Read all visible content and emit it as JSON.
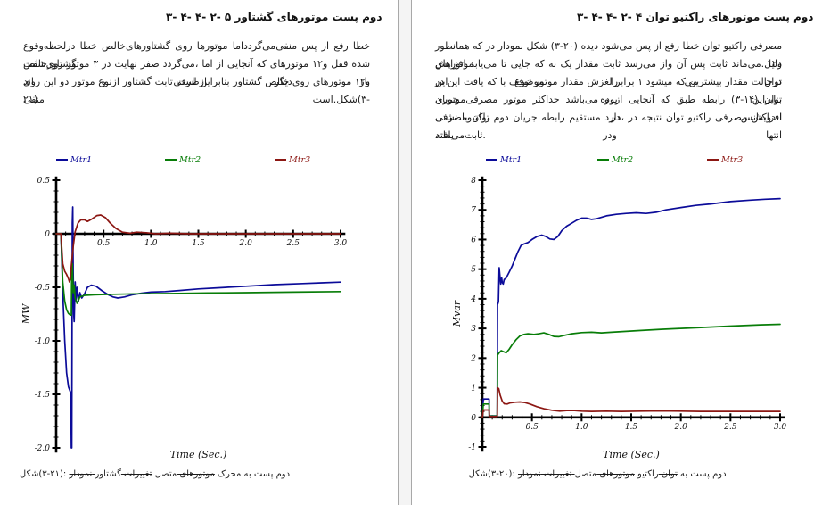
{
  "pages": {
    "left": {
      "heading": "۳- ۴- ۴- ۲- ۵ گشتاور موتورهای پست دوم",
      "paragraph_lines": [
        "درلحظه‌وقوع خطا گشتاورهای‌خالص روی موتورها منفی‌می‌گردداما پس از رفع خطا گشتاورخالص",
        "روی‌شفت موتور ۳ در نهایت صفر می‌گردد، اما از آنجایی که موتورهای ۱و۲ قفل شده اند و ازطرفی دیگر بار",
        "روی این دو موتور ازنوع گشتاور ثابت است بنابراین گشتاور خالص روی موتورهای ۱و۲ منفی است.شکل(۳-",
        "۲۱)"
      ],
      "caption_parts": [
        {
          "text": "شکل(۳-۲۱): ",
          "strike": false
        },
        {
          "text": "نمودار تغییرات",
          "strike": true
        },
        {
          "text": " گشتاور محرک ",
          "strike": false
        },
        {
          "text": "موتورهای",
          "strike": true
        },
        {
          "text": " متصل به پست دوم",
          "strike": false
        }
      ]
    },
    "right": {
      "heading": "۳- ۴- ۴- ۲- ۴ توان راکتیو موتورهای پست دوم",
      "paragraph_lines": [
        "همانطور که در نمودار شکل (۳-۲۰) دیده می‌شود پس از رفع خطا توان راکتیو مصرفی موتورهای ۱و۲",
        "افزایش می‌یابد تا جایی که به یک مقدار ثابت می‌رسد واز آن پس ثابت می‌ماند.دلیل این موضوع را می توان",
        "در این یافت که با توقف موتور مقدار لغزش برابر ۱ میشود که بیشترین مقدار درحالت موتوری بوده بنابراین",
        "جریان مصرفی موتور حداکثر می‌باشد و از آنجایی که طبق رابطه (۳-۱۴) توان راکتیومصرفی در اندوکتانس",
        "نشتی با توان دوم جریان رابطه مستقیم دارد، در نتیجه توان راکتیو مصرفی افزایش یافته ودر انتها",
        "ثابت‌می‌ماند."
      ],
      "caption_parts": [
        {
          "text": "شکل(۳-۲۰): ",
          "strike": false
        },
        {
          "text": "نمودار تغییرات توان",
          "strike": true
        },
        {
          "text": " راکتیو ",
          "strike": false
        },
        {
          "text": "موتورهای",
          "strike": true
        },
        {
          "text": " متصل به پست دوم",
          "strike": false
        }
      ]
    }
  },
  "chart_data": [
    {
      "id": "torque-chart",
      "type": "line",
      "title": "",
      "xlabel": "Time (Sec.)",
      "ylabel": "MW",
      "xlim": [
        0,
        3
      ],
      "ylim": [
        -2,
        0.5
      ],
      "x_major": 0.5,
      "x_minor": 0.1,
      "y_major": 0.5,
      "y_minor": 0.1,
      "grid": false,
      "legend_position": "top",
      "x_ticks": [
        [
          0.5,
          "0.5"
        ],
        [
          1,
          "1.0"
        ],
        [
          1.5,
          "1.5"
        ],
        [
          2,
          "2.0"
        ],
        [
          2.5,
          "2.5"
        ],
        [
          3,
          "3.0"
        ]
      ],
      "y_ticks": [
        [
          0.5,
          "0.5"
        ],
        [
          0,
          "0"
        ],
        [
          -0.5,
          "-0.5"
        ],
        [
          -1,
          "-1.0"
        ],
        [
          -1.5,
          "-1.5"
        ],
        [
          -2,
          "-2.0"
        ]
      ],
      "series": [
        {
          "name": "Mtr1",
          "color": "#0b0b99",
          "points": [
            [
              0,
              0
            ],
            [
              0.05,
              0
            ],
            [
              0.07,
              -0.55
            ],
            [
              0.09,
              -1.0
            ],
            [
              0.11,
              -1.3
            ],
            [
              0.13,
              -1.43
            ],
            [
              0.15,
              -1.48
            ],
            [
              0.155,
              -1.5
            ],
            [
              0.16,
              -2.0
            ],
            [
              0.165,
              -2.0
            ],
            [
              0.17,
              0.1
            ],
            [
              0.175,
              0.25
            ],
            [
              0.18,
              -0.35
            ],
            [
              0.185,
              -0.75
            ],
            [
              0.19,
              -0.82
            ],
            [
              0.2,
              -0.45
            ],
            [
              0.21,
              -0.62
            ],
            [
              0.22,
              -0.5
            ],
            [
              0.235,
              -0.63
            ],
            [
              0.25,
              -0.55
            ],
            [
              0.27,
              -0.6
            ],
            [
              0.3,
              -0.56
            ],
            [
              0.33,
              -0.5
            ],
            [
              0.37,
              -0.48
            ],
            [
              0.42,
              -0.49
            ],
            [
              0.48,
              -0.53
            ],
            [
              0.55,
              -0.57
            ],
            [
              0.6,
              -0.59
            ],
            [
              0.65,
              -0.6
            ],
            [
              0.72,
              -0.59
            ],
            [
              0.8,
              -0.57
            ],
            [
              0.9,
              -0.555
            ],
            [
              1.0,
              -0.545
            ],
            [
              1.15,
              -0.54
            ],
            [
              1.3,
              -0.53
            ],
            [
              1.5,
              -0.515
            ],
            [
              1.7,
              -0.505
            ],
            [
              2.0,
              -0.49
            ],
            [
              2.3,
              -0.475
            ],
            [
              2.6,
              -0.465
            ],
            [
              2.8,
              -0.458
            ],
            [
              3.0,
              -0.452
            ]
          ]
        },
        {
          "name": "Mtr2",
          "color": "#087d08",
          "points": [
            [
              0,
              0
            ],
            [
              0.05,
              0
            ],
            [
              0.07,
              -0.45
            ],
            [
              0.09,
              -0.63
            ],
            [
              0.11,
              -0.71
            ],
            [
              0.13,
              -0.745
            ],
            [
              0.15,
              -0.76
            ],
            [
              0.16,
              -0.76
            ],
            [
              0.165,
              -0.3
            ],
            [
              0.17,
              -0.28
            ],
            [
              0.18,
              -0.55
            ],
            [
              0.19,
              -0.48
            ],
            [
              0.2,
              -0.6
            ],
            [
              0.22,
              -0.65
            ],
            [
              0.25,
              -0.59
            ],
            [
              0.3,
              -0.575
            ],
            [
              0.4,
              -0.57
            ],
            [
              0.6,
              -0.565
            ],
            [
              0.9,
              -0.56
            ],
            [
              1.2,
              -0.558
            ],
            [
              1.6,
              -0.553
            ],
            [
              2.0,
              -0.55
            ],
            [
              2.5,
              -0.545
            ],
            [
              3.0,
              -0.54
            ]
          ]
        },
        {
          "name": "Mtr3",
          "color": "#8c1713",
          "points": [
            [
              0,
              0
            ],
            [
              0.05,
              0
            ],
            [
              0.07,
              -0.28
            ],
            [
              0.09,
              -0.35
            ],
            [
              0.11,
              -0.38
            ],
            [
              0.13,
              -0.42
            ],
            [
              0.14,
              -0.45
            ],
            [
              0.15,
              -0.42
            ],
            [
              0.16,
              -0.3
            ],
            [
              0.18,
              -0.12
            ],
            [
              0.2,
              0.02
            ],
            [
              0.23,
              0.1
            ],
            [
              0.26,
              0.13
            ],
            [
              0.3,
              0.13
            ],
            [
              0.33,
              0.115
            ],
            [
              0.38,
              0.14
            ],
            [
              0.43,
              0.17
            ],
            [
              0.47,
              0.175
            ],
            [
              0.52,
              0.15
            ],
            [
              0.57,
              0.1
            ],
            [
              0.63,
              0.05
            ],
            [
              0.7,
              0.015
            ],
            [
              0.78,
              0.005
            ],
            [
              0.85,
              0.015
            ],
            [
              0.95,
              0.01
            ],
            [
              1.05,
              0
            ],
            [
              1.2,
              0.005
            ],
            [
              1.4,
              0
            ],
            [
              1.7,
              0
            ],
            [
              2.0,
              0
            ],
            [
              2.5,
              0
            ],
            [
              3.0,
              0
            ]
          ]
        }
      ]
    },
    {
      "id": "reactive-power-chart",
      "type": "line",
      "title": "",
      "xlabel": "Time (Sec.)",
      "ylabel": "Mvar",
      "xlim": [
        0,
        3
      ],
      "ylim": [
        -1,
        8
      ],
      "x_major": 0.5,
      "x_minor": 0.1,
      "y_major": 1,
      "y_minor": 0.2,
      "grid": false,
      "legend_position": "top",
      "x_ticks": [
        [
          0.5,
          "0.5"
        ],
        [
          1,
          "1.0"
        ],
        [
          1.5,
          "1.5"
        ],
        [
          2,
          "2.0"
        ],
        [
          2.5,
          "2.5"
        ],
        [
          3,
          "3.0"
        ]
      ],
      "y_ticks": [
        [
          8,
          "8"
        ],
        [
          7,
          "7"
        ],
        [
          6,
          "6"
        ],
        [
          5,
          "5"
        ],
        [
          4,
          "4"
        ],
        [
          3,
          "3"
        ],
        [
          2,
          "2"
        ],
        [
          1,
          "1"
        ],
        [
          0,
          "0"
        ],
        [
          -1,
          "-1"
        ]
      ],
      "series": [
        {
          "name": "Mtr1",
          "color": "#0b0b99",
          "points": [
            [
              0,
              0
            ],
            [
              0.01,
              0.62
            ],
            [
              0.068,
              0.62
            ],
            [
              0.07,
              0.05
            ],
            [
              0.15,
              0.05
            ],
            [
              0.153,
              3.8
            ],
            [
              0.158,
              3.85
            ],
            [
              0.163,
              3.9
            ],
            [
              0.17,
              5.05
            ],
            [
              0.178,
              4.75
            ],
            [
              0.185,
              4.5
            ],
            [
              0.195,
              4.7
            ],
            [
              0.2,
              4.55
            ],
            [
              0.21,
              4.5
            ],
            [
              0.22,
              4.65
            ],
            [
              0.24,
              4.7
            ],
            [
              0.27,
              4.9
            ],
            [
              0.3,
              5.1
            ],
            [
              0.33,
              5.35
            ],
            [
              0.36,
              5.6
            ],
            [
              0.39,
              5.8
            ],
            [
              0.42,
              5.85
            ],
            [
              0.46,
              5.9
            ],
            [
              0.5,
              6.0
            ],
            [
              0.55,
              6.1
            ],
            [
              0.6,
              6.15
            ],
            [
              0.64,
              6.1
            ],
            [
              0.68,
              6.02
            ],
            [
              0.72,
              6.0
            ],
            [
              0.76,
              6.1
            ],
            [
              0.8,
              6.3
            ],
            [
              0.85,
              6.45
            ],
            [
              0.9,
              6.55
            ],
            [
              0.95,
              6.65
            ],
            [
              1.0,
              6.72
            ],
            [
              1.05,
              6.72
            ],
            [
              1.1,
              6.68
            ],
            [
              1.15,
              6.7
            ],
            [
              1.25,
              6.8
            ],
            [
              1.35,
              6.85
            ],
            [
              1.45,
              6.88
            ],
            [
              1.55,
              6.9
            ],
            [
              1.65,
              6.88
            ],
            [
              1.75,
              6.92
            ],
            [
              1.85,
              7.0
            ],
            [
              2.0,
              7.08
            ],
            [
              2.15,
              7.15
            ],
            [
              2.3,
              7.2
            ],
            [
              2.5,
              7.28
            ],
            [
              2.7,
              7.33
            ],
            [
              2.85,
              7.36
            ],
            [
              3.0,
              7.38
            ]
          ]
        },
        {
          "name": "Mtr2",
          "color": "#087d08",
          "points": [
            [
              0,
              0
            ],
            [
              0.01,
              0.45
            ],
            [
              0.068,
              0.45
            ],
            [
              0.07,
              0.04
            ],
            [
              0.15,
              0.04
            ],
            [
              0.153,
              2.1
            ],
            [
              0.17,
              2.18
            ],
            [
              0.19,
              2.25
            ],
            [
              0.21,
              2.22
            ],
            [
              0.24,
              2.18
            ],
            [
              0.27,
              2.3
            ],
            [
              0.3,
              2.45
            ],
            [
              0.34,
              2.62
            ],
            [
              0.38,
              2.75
            ],
            [
              0.42,
              2.8
            ],
            [
              0.46,
              2.82
            ],
            [
              0.52,
              2.8
            ],
            [
              0.57,
              2.82
            ],
            [
              0.62,
              2.85
            ],
            [
              0.67,
              2.8
            ],
            [
              0.72,
              2.73
            ],
            [
              0.77,
              2.72
            ],
            [
              0.82,
              2.76
            ],
            [
              0.9,
              2.82
            ],
            [
              1.0,
              2.86
            ],
            [
              1.1,
              2.87
            ],
            [
              1.2,
              2.85
            ],
            [
              1.3,
              2.87
            ],
            [
              1.45,
              2.9
            ],
            [
              1.6,
              2.93
            ],
            [
              1.8,
              2.97
            ],
            [
              2.0,
              3.0
            ],
            [
              2.2,
              3.03
            ],
            [
              2.5,
              3.08
            ],
            [
              2.8,
              3.12
            ],
            [
              3.0,
              3.14
            ]
          ]
        },
        {
          "name": "Mtr3",
          "color": "#8c1713",
          "points": [
            [
              0,
              0
            ],
            [
              0.01,
              0.25
            ],
            [
              0.068,
              0.25
            ],
            [
              0.07,
              0.03
            ],
            [
              0.15,
              0.03
            ],
            [
              0.153,
              1.0
            ],
            [
              0.165,
              0.97
            ],
            [
              0.18,
              0.75
            ],
            [
              0.2,
              0.55
            ],
            [
              0.22,
              0.46
            ],
            [
              0.25,
              0.45
            ],
            [
              0.28,
              0.49
            ],
            [
              0.33,
              0.51
            ],
            [
              0.38,
              0.52
            ],
            [
              0.43,
              0.5
            ],
            [
              0.48,
              0.45
            ],
            [
              0.55,
              0.36
            ],
            [
              0.62,
              0.29
            ],
            [
              0.7,
              0.24
            ],
            [
              0.78,
              0.21
            ],
            [
              0.85,
              0.23
            ],
            [
              0.93,
              0.23
            ],
            [
              1.0,
              0.21
            ],
            [
              1.1,
              0.2
            ],
            [
              1.25,
              0.21
            ],
            [
              1.4,
              0.2
            ],
            [
              1.6,
              0.21
            ],
            [
              1.8,
              0.22
            ],
            [
              2.0,
              0.21
            ],
            [
              2.2,
              0.2
            ],
            [
              2.5,
              0.2
            ],
            [
              2.8,
              0.2
            ],
            [
              3.0,
              0.2
            ]
          ]
        }
      ]
    }
  ]
}
